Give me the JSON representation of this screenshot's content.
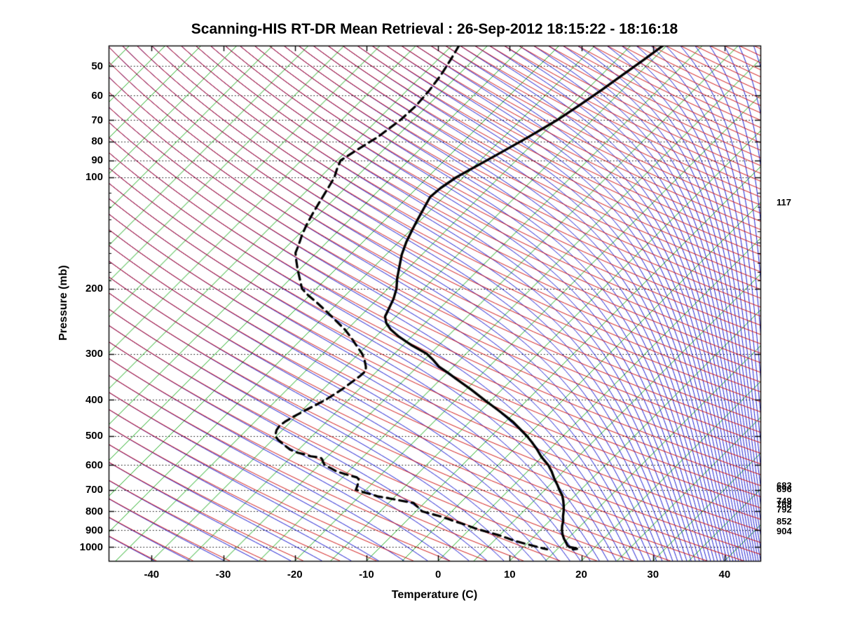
{
  "chart_data": {
    "type": "skewt_log_p",
    "title": "Scanning-HIS RT-DR Mean Retrieval : 26-Sep-2012 18:15:22 - 18:16:18",
    "xlabel": "Temperature (C)",
    "ylabel": "Pressure (mb)",
    "x_ticks": [
      -40,
      -30,
      -20,
      -10,
      0,
      10,
      20,
      30,
      40
    ],
    "y_ticks": [
      50,
      60,
      70,
      80,
      90,
      100,
      200,
      300,
      400,
      500,
      600,
      700,
      800,
      900,
      1000
    ],
    "y_minor_ticks": [
      110,
      120,
      130,
      140,
      150,
      160,
      170,
      180,
      190
    ],
    "temp_range_c": [
      -46,
      45
    ],
    "pressure_range_mb": [
      44,
      1090
    ],
    "skew_deg": 45,
    "grid": "dotted-horizontal-pressure-lines",
    "legend_position": "none",
    "colors": {
      "isotherm": "#00A000",
      "dry_adiabat": "#CC0000",
      "moist_adiabat": "#0000CC",
      "temperature_curve": "#000000",
      "dewpoint_curve": "#000000",
      "grid": "#000000",
      "axis": "#000000"
    },
    "isotherms_c": {
      "min": -115,
      "max": 45,
      "step": 5
    },
    "dry_adiabats_theta_c": {
      "min": -45,
      "max": 330,
      "step": 5
    },
    "moist_adiabats_theta_c": {
      "min": -45,
      "max": 330,
      "step": 5
    },
    "series": [
      {
        "name": "temperature",
        "style": "solid",
        "color": "#000000",
        "points_p_t": [
          [
            44,
            -40.5
          ],
          [
            48,
            -41.2
          ],
          [
            53,
            -42.1
          ],
          [
            58,
            -42.9
          ],
          [
            64,
            -43.9
          ],
          [
            70,
            -44.9
          ],
          [
            78,
            -46.6
          ],
          [
            87,
            -48.5
          ],
          [
            95,
            -50.1
          ],
          [
            100,
            -51.0
          ],
          [
            107,
            -51.7
          ],
          [
            113,
            -51.9
          ],
          [
            120,
            -51.3
          ],
          [
            130,
            -50.5
          ],
          [
            140,
            -49.7
          ],
          [
            150,
            -48.9
          ],
          [
            162,
            -47.8
          ],
          [
            175,
            -46.4
          ],
          [
            188,
            -45.1
          ],
          [
            200,
            -43.8
          ],
          [
            213,
            -42.8
          ],
          [
            228,
            -42.0
          ],
          [
            238,
            -41.5
          ],
          [
            248,
            -40.4
          ],
          [
            258,
            -38.9
          ],
          [
            270,
            -36.7
          ],
          [
            285,
            -33.7
          ],
          [
            300,
            -30.5
          ],
          [
            312,
            -28.7
          ],
          [
            325,
            -27.0
          ],
          [
            337,
            -25.0
          ],
          [
            350,
            -23.0
          ],
          [
            375,
            -19.3
          ],
          [
            400,
            -16.0
          ],
          [
            430,
            -12.2
          ],
          [
            460,
            -8.8
          ],
          [
            480,
            -6.9
          ],
          [
            500,
            -5.1
          ],
          [
            520,
            -3.5
          ],
          [
            545,
            -1.7
          ],
          [
            570,
            -0.1
          ],
          [
            600,
            2.0
          ],
          [
            625,
            3.4
          ],
          [
            650,
            4.6
          ],
          [
            662,
            5.2
          ],
          [
            680,
            6.1
          ],
          [
            700,
            7.0
          ],
          [
            725,
            8.2
          ],
          [
            750,
            9.1
          ],
          [
            775,
            9.9
          ],
          [
            800,
            10.6
          ],
          [
            825,
            11.2
          ],
          [
            850,
            11.9
          ],
          [
            875,
            12.4
          ],
          [
            900,
            13.0
          ],
          [
            925,
            13.7
          ],
          [
            950,
            14.5
          ],
          [
            975,
            15.4
          ],
          [
            990,
            15.9
          ],
          [
            1000,
            16.4
          ],
          [
            1006,
            17.3
          ],
          [
            1011,
            17.7
          ],
          [
            1014,
            17.2
          ]
        ]
      },
      {
        "name": "dewpoint",
        "style": "dashed",
        "color": "#000000",
        "points_p_t": [
          [
            44,
            -69.0
          ],
          [
            48,
            -68.2
          ],
          [
            53,
            -67.4
          ],
          [
            58,
            -66.9
          ],
          [
            64,
            -66.6
          ],
          [
            70,
            -66.8
          ],
          [
            78,
            -67.6
          ],
          [
            85,
            -68.8
          ],
          [
            90,
            -69.5
          ],
          [
            95,
            -68.8
          ],
          [
            100,
            -68.0
          ],
          [
            108,
            -67.3
          ],
          [
            117,
            -66.6
          ],
          [
            125,
            -66.0
          ],
          [
            134,
            -65.3
          ],
          [
            143,
            -64.5
          ],
          [
            153,
            -63.5
          ],
          [
            160,
            -62.9
          ],
          [
            168,
            -61.7
          ],
          [
            178,
            -60.2
          ],
          [
            190,
            -58.4
          ],
          [
            200,
            -57.0
          ],
          [
            208,
            -55.3
          ],
          [
            218,
            -53.0
          ],
          [
            230,
            -50.5
          ],
          [
            243,
            -48.0
          ],
          [
            258,
            -45.3
          ],
          [
            272,
            -43.2
          ],
          [
            287,
            -41.2
          ],
          [
            300,
            -39.5
          ],
          [
            312,
            -38.3
          ],
          [
            325,
            -37.2
          ],
          [
            334,
            -36.6
          ],
          [
            345,
            -36.7
          ],
          [
            358,
            -37.0
          ],
          [
            372,
            -37.3
          ],
          [
            385,
            -37.7
          ],
          [
            400,
            -38.2
          ],
          [
            412,
            -38.8
          ],
          [
            428,
            -39.6
          ],
          [
            443,
            -40.3
          ],
          [
            458,
            -40.8
          ],
          [
            470,
            -41.0
          ],
          [
            483,
            -40.8
          ],
          [
            500,
            -40.2
          ],
          [
            512,
            -39.3
          ],
          [
            528,
            -37.8
          ],
          [
            545,
            -36.2
          ],
          [
            555,
            -34.8
          ],
          [
            562,
            -33.4
          ],
          [
            568,
            -32.4
          ],
          [
            573,
            -30.8
          ],
          [
            580,
            -30.3
          ],
          [
            590,
            -29.8
          ],
          [
            600,
            -29.2
          ],
          [
            612,
            -27.9
          ],
          [
            625,
            -26.6
          ],
          [
            638,
            -24.6
          ],
          [
            648,
            -23.0
          ],
          [
            655,
            -22.5
          ],
          [
            668,
            -22.1
          ],
          [
            685,
            -21.7
          ],
          [
            700,
            -21.4
          ],
          [
            710,
            -20.1
          ],
          [
            720,
            -18.6
          ],
          [
            729,
            -17.5
          ],
          [
            738,
            -15.6
          ],
          [
            748,
            -13.8
          ],
          [
            760,
            -11.5
          ],
          [
            772,
            -10.8
          ],
          [
            785,
            -10.0
          ],
          [
            800,
            -9.2
          ],
          [
            812,
            -7.7
          ],
          [
            826,
            -5.9
          ],
          [
            840,
            -4.4
          ],
          [
            851,
            -3.3
          ],
          [
            863,
            -2.0
          ],
          [
            877,
            -0.6
          ],
          [
            890,
            0.6
          ],
          [
            900,
            1.7
          ],
          [
            915,
            3.4
          ],
          [
            930,
            5.0
          ],
          [
            945,
            6.4
          ],
          [
            961,
            7.8
          ],
          [
            975,
            9.3
          ],
          [
            988,
            10.7
          ],
          [
            1000,
            12.0
          ],
          [
            1008,
            12.9
          ],
          [
            1014,
            13.6
          ]
        ]
      }
    ],
    "right_annotations": [
      {
        "label": "117",
        "p_mb": 117
      },
      {
        "label": "683",
        "p_mb": 683
      },
      {
        "label": "696",
        "p_mb": 696
      },
      {
        "label": "749",
        "p_mb": 749
      },
      {
        "label": "768",
        "p_mb": 768
      },
      {
        "label": "792",
        "p_mb": 792
      },
      {
        "label": "852",
        "p_mb": 852
      },
      {
        "label": "904",
        "p_mb": 904
      }
    ]
  }
}
